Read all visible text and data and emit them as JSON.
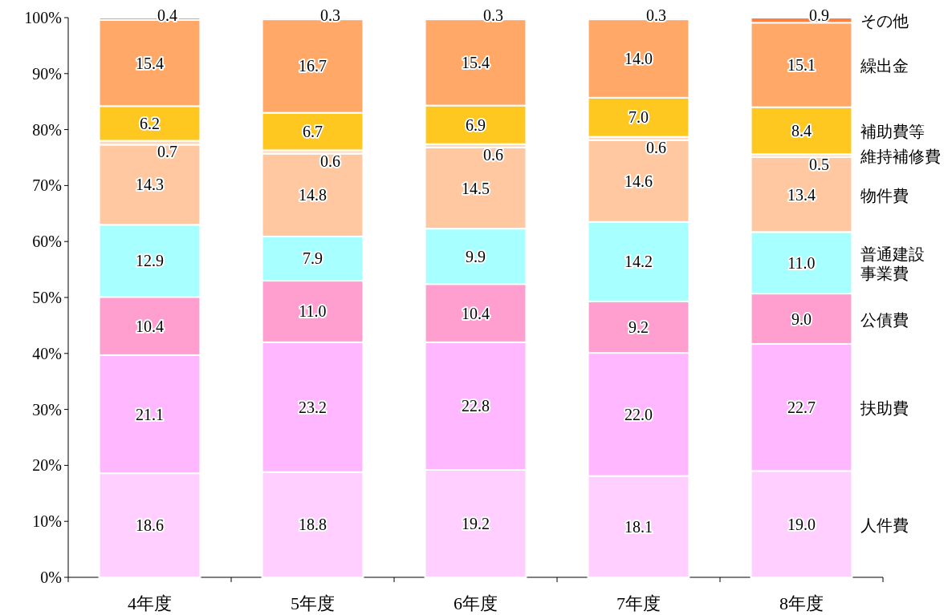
{
  "chart_data": {
    "type": "bar",
    "stacked": true,
    "legend": "right",
    "grid": false,
    "categories": [
      "4年度",
      "5年度",
      "6年度",
      "7年度",
      "8年度"
    ],
    "ylim": [
      0,
      100
    ],
    "yticks": [
      {
        "value": 0,
        "label": "0%"
      },
      {
        "value": 10,
        "label": "10%"
      },
      {
        "value": 20,
        "label": "20%"
      },
      {
        "value": 30,
        "label": "30%"
      },
      {
        "value": 40,
        "label": "40%"
      },
      {
        "value": 50,
        "label": "50%"
      },
      {
        "value": 60,
        "label": "60%"
      },
      {
        "value": 70,
        "label": "70%"
      },
      {
        "value": 80,
        "label": "80%"
      },
      {
        "value": 90,
        "label": "90%"
      },
      {
        "value": 100,
        "label": "100%"
      }
    ],
    "series": [
      {
        "name": "人件費",
        "color": "#ffd0ff",
        "values": [
          18.6,
          18.8,
          19.2,
          18.1,
          19.0
        ],
        "value_labels": [
          "18.6",
          "18.8",
          "19.2",
          "18.1",
          "19.0"
        ]
      },
      {
        "name": "扶助費",
        "color": "#ffb8ff",
        "values": [
          21.1,
          23.2,
          22.8,
          22.0,
          22.7
        ],
        "value_labels": [
          "21.1",
          "23.2",
          "22.8",
          "22.0",
          "22.7"
        ]
      },
      {
        "name": "公債費",
        "color": "#ff9fd0",
        "values": [
          10.4,
          11.0,
          10.4,
          9.2,
          9.0
        ],
        "value_labels": [
          "10.4",
          "11.0",
          "10.4",
          "9.2",
          "9.0"
        ]
      },
      {
        "name": "普通建設事業費",
        "color": "#a8ffff",
        "values": [
          12.9,
          7.9,
          9.9,
          14.2,
          11.0
        ],
        "value_labels": [
          "12.9",
          "7.9",
          "9.9",
          "14.2",
          "11.0"
        ]
      },
      {
        "name": "物件費",
        "color": "#ffc8a0",
        "values": [
          14.3,
          14.8,
          14.5,
          14.6,
          13.4
        ],
        "value_labels": [
          "14.3",
          "14.8",
          "14.5",
          "14.6",
          "13.4"
        ]
      },
      {
        "name": "維持補修費",
        "color": "#ffd8b8",
        "values": [
          0.7,
          0.6,
          0.6,
          0.6,
          0.5
        ],
        "value_labels": [
          "0.7",
          "0.6",
          "0.6",
          "0.6",
          "0.5"
        ]
      },
      {
        "name": "補助費等",
        "color": "#ffc820",
        "values": [
          6.2,
          6.7,
          6.9,
          7.0,
          8.4
        ],
        "value_labels": [
          "6.2",
          "6.7",
          "6.9",
          "7.0",
          "8.4"
        ]
      },
      {
        "name": "繰出金",
        "color": "#ffa868",
        "values": [
          15.4,
          16.7,
          15.4,
          14.0,
          15.1
        ],
        "value_labels": [
          "15.4",
          "16.7",
          "15.4",
          "14.0",
          "15.1"
        ]
      },
      {
        "name": "その他",
        "color": "#ff8040",
        "values": [
          0.4,
          0.3,
          0.3,
          0.3,
          0.9
        ],
        "value_labels": [
          "0.4",
          "0.3",
          "0.3",
          "0.3",
          "0.9"
        ]
      }
    ]
  }
}
